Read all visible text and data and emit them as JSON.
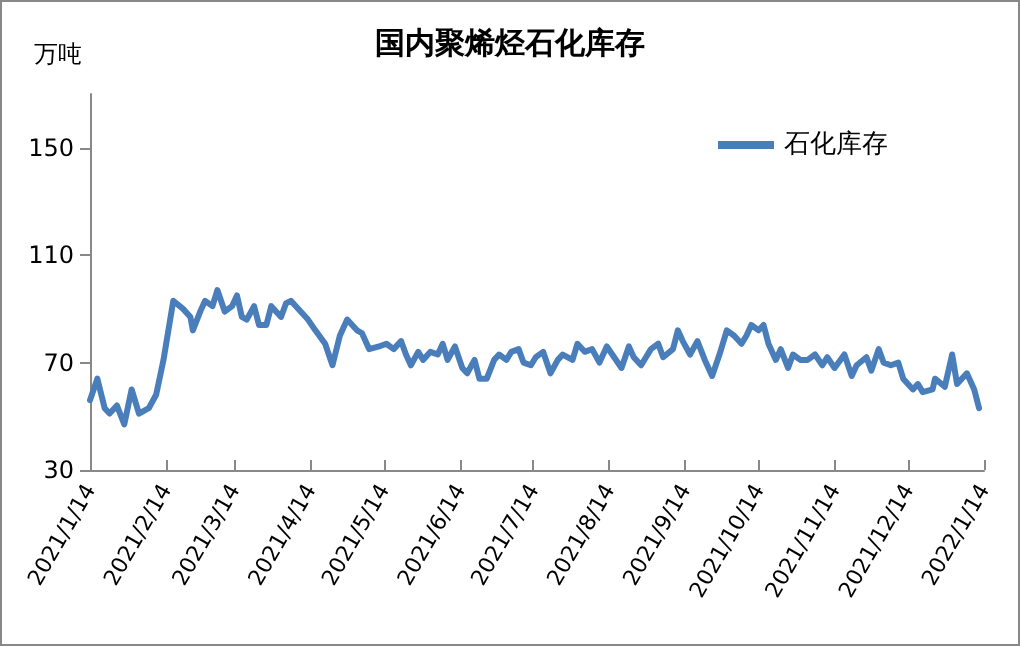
{
  "chart_data": {
    "type": "line",
    "title": "国内聚烯烃石化库存",
    "ylabel": "万吨",
    "x": [
      "2021-01-14",
      "2021-01-17",
      "2021-01-20",
      "2021-01-22",
      "2021-01-25",
      "2021-01-28",
      "2021-01-31",
      "2021-02-03",
      "2021-02-07",
      "2021-02-10",
      "2021-02-13",
      "2021-02-17",
      "2021-02-21",
      "2021-02-24",
      "2021-02-25",
      "2021-02-28",
      "2021-03-02",
      "2021-03-05",
      "2021-03-07",
      "2021-03-10",
      "2021-03-13",
      "2021-03-15",
      "2021-03-17",
      "2021-03-19",
      "2021-03-22",
      "2021-03-24",
      "2021-03-27",
      "2021-03-29",
      "2021-04-02",
      "2021-04-04",
      "2021-04-06",
      "2021-04-10",
      "2021-04-13",
      "2021-04-16",
      "2021-04-20",
      "2021-04-23",
      "2021-04-26",
      "2021-04-29",
      "2021-05-03",
      "2021-05-05",
      "2021-05-08",
      "2021-05-12",
      "2021-05-15",
      "2021-05-18",
      "2021-05-21",
      "2021-05-23",
      "2021-05-25",
      "2021-05-28",
      "2021-05-30",
      "2021-06-02",
      "2021-06-05",
      "2021-06-07",
      "2021-06-09",
      "2021-06-12",
      "2021-06-15",
      "2021-06-17",
      "2021-06-20",
      "2021-06-22",
      "2021-06-25",
      "2021-06-28",
      "2021-06-30",
      "2021-07-03",
      "2021-07-05",
      "2021-07-08",
      "2021-07-10",
      "2021-07-13",
      "2021-07-15",
      "2021-07-18",
      "2021-07-21",
      "2021-07-24",
      "2021-07-26",
      "2021-07-30",
      "2021-08-01",
      "2021-08-04",
      "2021-08-07",
      "2021-08-10",
      "2021-08-13",
      "2021-08-16",
      "2021-08-19",
      "2021-08-22",
      "2021-08-24",
      "2021-08-27",
      "2021-08-31",
      "2021-09-03",
      "2021-09-05",
      "2021-09-09",
      "2021-09-11",
      "2021-09-13",
      "2021-09-16",
      "2021-09-19",
      "2021-09-22",
      "2021-09-25",
      "2021-09-28",
      "2021-10-01",
      "2021-10-04",
      "2021-10-07",
      "2021-10-09",
      "2021-10-11",
      "2021-10-14",
      "2021-10-16",
      "2021-10-18",
      "2021-10-21",
      "2021-10-23",
      "2021-10-26",
      "2021-10-28",
      "2021-10-31",
      "2021-11-03",
      "2021-11-06",
      "2021-11-09",
      "2021-11-11",
      "2021-11-14",
      "2021-11-18",
      "2021-11-21",
      "2021-11-23",
      "2021-11-27",
      "2021-11-29",
      "2021-12-02",
      "2021-12-04",
      "2021-12-07",
      "2021-12-10",
      "2021-12-12",
      "2021-12-16",
      "2021-12-18",
      "2021-12-20",
      "2021-12-24",
      "2021-12-25",
      "2021-12-29",
      "2022-01-01",
      "2022-01-03",
      "2022-01-07",
      "2022-01-10",
      "2022-01-12"
    ],
    "series": [
      {
        "name": "石化库存",
        "color": "#4a7ebb",
        "values": [
          56,
          64,
          53,
          51,
          54,
          47,
          60,
          51,
          53,
          58,
          71,
          93,
          90,
          87,
          82,
          89,
          93,
          91,
          97,
          89,
          91,
          95,
          87,
          86,
          91,
          84,
          84,
          91,
          87,
          92,
          93,
          89,
          86,
          82,
          77,
          69,
          80,
          86,
          82,
          81,
          75,
          76,
          77,
          75,
          78,
          73,
          69,
          74,
          71,
          74,
          73,
          77,
          71,
          76,
          68,
          66,
          71,
          64,
          64,
          71,
          73,
          71,
          74,
          75,
          70,
          69,
          72,
          74,
          66,
          71,
          73,
          71,
          77,
          74,
          75,
          70,
          76,
          72,
          68,
          76,
          72,
          69,
          75,
          77,
          72,
          75,
          82,
          78,
          73,
          78,
          71,
          65,
          73,
          82,
          80,
          77,
          80,
          84,
          82,
          84,
          77,
          71,
          75,
          68,
          73,
          71,
          71,
          73,
          69,
          72,
          68,
          73,
          65,
          69,
          72,
          67,
          75,
          70,
          69,
          70,
          64,
          60,
          62,
          59,
          60,
          64,
          61,
          73,
          62,
          66,
          60,
          53
        ]
      }
    ],
    "xlim": [
      "2021-01-14",
      "2022-01-14"
    ],
    "xticks": [
      {
        "value": "2021-01-14",
        "label": "2021/1/14"
      },
      {
        "value": "2021-02-14",
        "label": "2021/2/14"
      },
      {
        "value": "2021-03-14",
        "label": "2021/3/14"
      },
      {
        "value": "2021-04-14",
        "label": "2021/4/14"
      },
      {
        "value": "2021-05-14",
        "label": "2021/5/14"
      },
      {
        "value": "2021-06-14",
        "label": "2021/6/14"
      },
      {
        "value": "2021-07-14",
        "label": "2021/7/14"
      },
      {
        "value": "2021-08-14",
        "label": "2021/8/14"
      },
      {
        "value": "2021-09-14",
        "label": "2021/9/14"
      },
      {
        "value": "2021-10-14",
        "label": "2021/10/14"
      },
      {
        "value": "2021-11-14",
        "label": "2021/11/14"
      },
      {
        "value": "2021-12-14",
        "label": "2021/12/14"
      },
      {
        "value": "2022-01-14",
        "label": "2022/1/14"
      }
    ],
    "ylim": [
      30,
      170
    ],
    "yticks": [
      30,
      70,
      110,
      150
    ],
    "grid": false,
    "legend": "top right",
    "marker": "none",
    "line_style": "solid"
  }
}
